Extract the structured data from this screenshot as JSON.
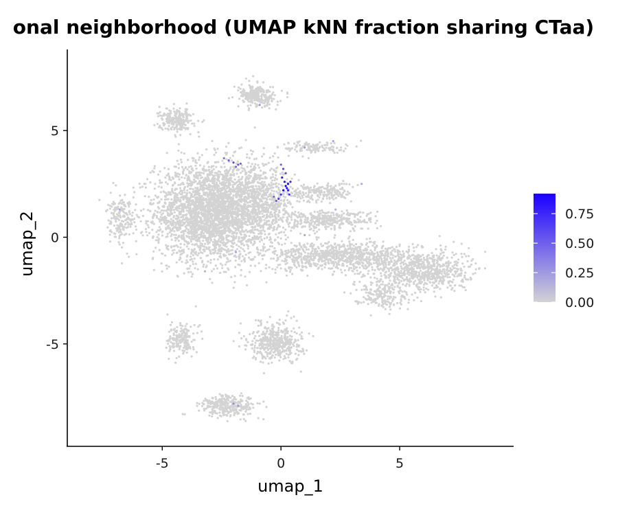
{
  "chart_data": {
    "type": "scatter",
    "title": "onal neighborhood (UMAP kNN fraction sharing CTaa)",
    "xlabel": "umap_1",
    "ylabel": "umap_2",
    "xlim": [
      -9.0,
      9.8
    ],
    "ylim": [
      -9.8,
      8.8
    ],
    "x_ticks": [
      -5,
      0,
      5
    ],
    "x_tick_labels": [
      "-5",
      "0",
      "5"
    ],
    "y_ticks": [
      -5,
      0,
      5
    ],
    "y_tick_labels": [
      "-5",
      "0",
      "5"
    ],
    "grid": false,
    "legend": {
      "placement": "right",
      "title": "",
      "min": 0,
      "max": 0.92,
      "ticks": [
        0,
        0.25,
        0.5,
        0.75
      ],
      "tick_labels": [
        "0.00",
        "0.25",
        "0.50",
        "0.75"
      ],
      "color_low": "#d3d3d3",
      "color_high": "#1a00ff"
    },
    "point_color_default": "#d3d3d3",
    "clusters": [
      {
        "cx": -3.0,
        "cy": 1.2,
        "rx": 2.3,
        "ry": 2.3,
        "n": 2800
      },
      {
        "cx": -1.0,
        "cy": 1.5,
        "rx": 1.5,
        "ry": 1.8,
        "n": 800
      },
      {
        "cx": 2.5,
        "cy": -0.9,
        "rx": 3.2,
        "ry": 0.65,
        "n": 900
      },
      {
        "cx": 6.0,
        "cy": -1.6,
        "rx": 1.9,
        "ry": 1.0,
        "n": 700
      },
      {
        "cx": 4.2,
        "cy": -2.6,
        "rx": 1.1,
        "ry": 0.7,
        "n": 200
      },
      {
        "cx": 1.9,
        "cy": 0.8,
        "rx": 2.0,
        "ry": 0.45,
        "n": 350
      },
      {
        "cx": 1.7,
        "cy": 2.1,
        "rx": 1.3,
        "ry": 0.45,
        "n": 200
      },
      {
        "cx": 1.5,
        "cy": 4.2,
        "rx": 1.6,
        "ry": 0.3,
        "n": 120
      },
      {
        "cx": -1.0,
        "cy": 6.6,
        "rx": 0.8,
        "ry": 0.5,
        "n": 260
      },
      {
        "cx": -4.4,
        "cy": 5.5,
        "rx": 0.7,
        "ry": 0.55,
        "n": 220
      },
      {
        "cx": -6.7,
        "cy": 0.8,
        "rx": 0.6,
        "ry": 1.1,
        "n": 180
      },
      {
        "cx": -4.2,
        "cy": -4.8,
        "rx": 0.55,
        "ry": 0.7,
        "n": 180
      },
      {
        "cx": -0.2,
        "cy": -4.9,
        "rx": 1.1,
        "ry": 0.9,
        "n": 450
      },
      {
        "cx": -2.2,
        "cy": -7.9,
        "rx": 1.2,
        "ry": 0.5,
        "n": 300
      }
    ],
    "highlighted_points": [
      {
        "x": 0.2,
        "y": 2.4,
        "v": 0.92
      },
      {
        "x": 0.3,
        "y": 2.5,
        "v": 0.9
      },
      {
        "x": 0.1,
        "y": 2.2,
        "v": 0.88
      },
      {
        "x": 0.25,
        "y": 2.3,
        "v": 0.85
      },
      {
        "x": 0.15,
        "y": 2.6,
        "v": 0.82
      },
      {
        "x": 0.05,
        "y": 2.8,
        "v": 0.8
      },
      {
        "x": 0.3,
        "y": 2.2,
        "v": 0.78
      },
      {
        "x": 0.0,
        "y": 2.0,
        "v": 0.7
      },
      {
        "x": -0.1,
        "y": 1.8,
        "v": 0.65
      },
      {
        "x": 0.1,
        "y": 3.2,
        "v": 0.62
      },
      {
        "x": 0.2,
        "y": 3.0,
        "v": 0.6
      },
      {
        "x": -0.2,
        "y": 1.7,
        "v": 0.55
      },
      {
        "x": 0.35,
        "y": 2.0,
        "v": 0.7
      },
      {
        "x": 0.0,
        "y": 3.4,
        "v": 0.5
      },
      {
        "x": -0.3,
        "y": 1.9,
        "v": 0.45
      },
      {
        "x": 0.4,
        "y": 2.6,
        "v": 0.75
      },
      {
        "x": -2.0,
        "y": 3.5,
        "v": 0.6
      },
      {
        "x": -1.8,
        "y": 3.4,
        "v": 0.55
      },
      {
        "x": -2.2,
        "y": 3.6,
        "v": 0.5
      },
      {
        "x": -1.9,
        "y": 3.3,
        "v": 0.45
      },
      {
        "x": -2.4,
        "y": 3.7,
        "v": 0.4
      },
      {
        "x": -1.7,
        "y": 3.45,
        "v": 0.5
      },
      {
        "x": 1.0,
        "y": 4.2,
        "v": 0.25
      },
      {
        "x": 2.2,
        "y": 4.5,
        "v": 0.2
      },
      {
        "x": -0.9,
        "y": 6.2,
        "v": 0.3
      },
      {
        "x": -6.8,
        "y": 1.3,
        "v": 0.2
      },
      {
        "x": -2.0,
        "y": -7.8,
        "v": 0.3
      },
      {
        "x": -1.8,
        "y": -7.9,
        "v": 0.25
      },
      {
        "x": -1.9,
        "y": -0.7,
        "v": 0.2
      },
      {
        "x": 1.0,
        "y": 0.1,
        "v": 0.2
      },
      {
        "x": 3.4,
        "y": 2.5,
        "v": 0.2
      },
      {
        "x": -3.2,
        "y": -1.6,
        "v": 0.15
      },
      {
        "x": 2.3,
        "y": 1.3,
        "v": 0.15
      }
    ]
  }
}
